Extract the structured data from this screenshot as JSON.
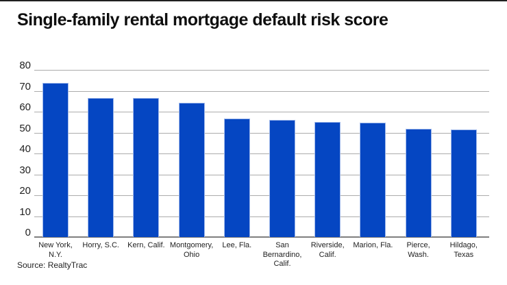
{
  "header": {
    "title": "Single-family rental mortgage default risk score"
  },
  "footer": {
    "source": "Source: RealtyTrac"
  },
  "chart_data": {
    "type": "bar",
    "title": "Single-family rental mortgage default risk score",
    "source": "Source: RealtyTrac",
    "categories": [
      "New York, N.Y.",
      "Horry, S.C.",
      "Kern, Calif.",
      "Montgomery, Ohio",
      "Lee, Fla.",
      "San Bernardino, Calif.",
      "Riverside, Calif.",
      "Marion, Fla.",
      "Pierce, Wash.",
      "Hildago, Texas"
    ],
    "category_label_lines": [
      [
        "New York,",
        "N.Y."
      ],
      [
        "Horry, S.C."
      ],
      [
        "Kern, Calif."
      ],
      [
        "Montgomery,",
        "Ohio"
      ],
      [
        "Lee, Fla."
      ],
      [
        "San",
        "Bernardino,",
        "Calif."
      ],
      [
        "Riverside,",
        "Calif."
      ],
      [
        "Marion, Fla."
      ],
      [
        "Pierce,",
        "Wash."
      ],
      [
        "Hildago,",
        "Texas"
      ]
    ],
    "values": [
      73.7,
      66.6,
      66.4,
      64.2,
      56.6,
      56.0,
      55.2,
      54.6,
      51.9,
      51.6
    ],
    "ylim": [
      0,
      80
    ],
    "yticks": [
      0,
      10,
      20,
      30,
      40,
      50,
      60,
      70,
      80
    ],
    "grid": true,
    "legend": "none",
    "xlabel": "",
    "ylabel": "",
    "colors": {
      "bar_fill": "#0546C2",
      "bar_border": "#A0B9EB",
      "gridline": "#ABABAB",
      "axis_line": "#7E7E7E",
      "title_text": "#0E0E0E",
      "label_text": "#212121",
      "top_border": "#1F1F1F",
      "background": "#FFFFFF"
    }
  }
}
